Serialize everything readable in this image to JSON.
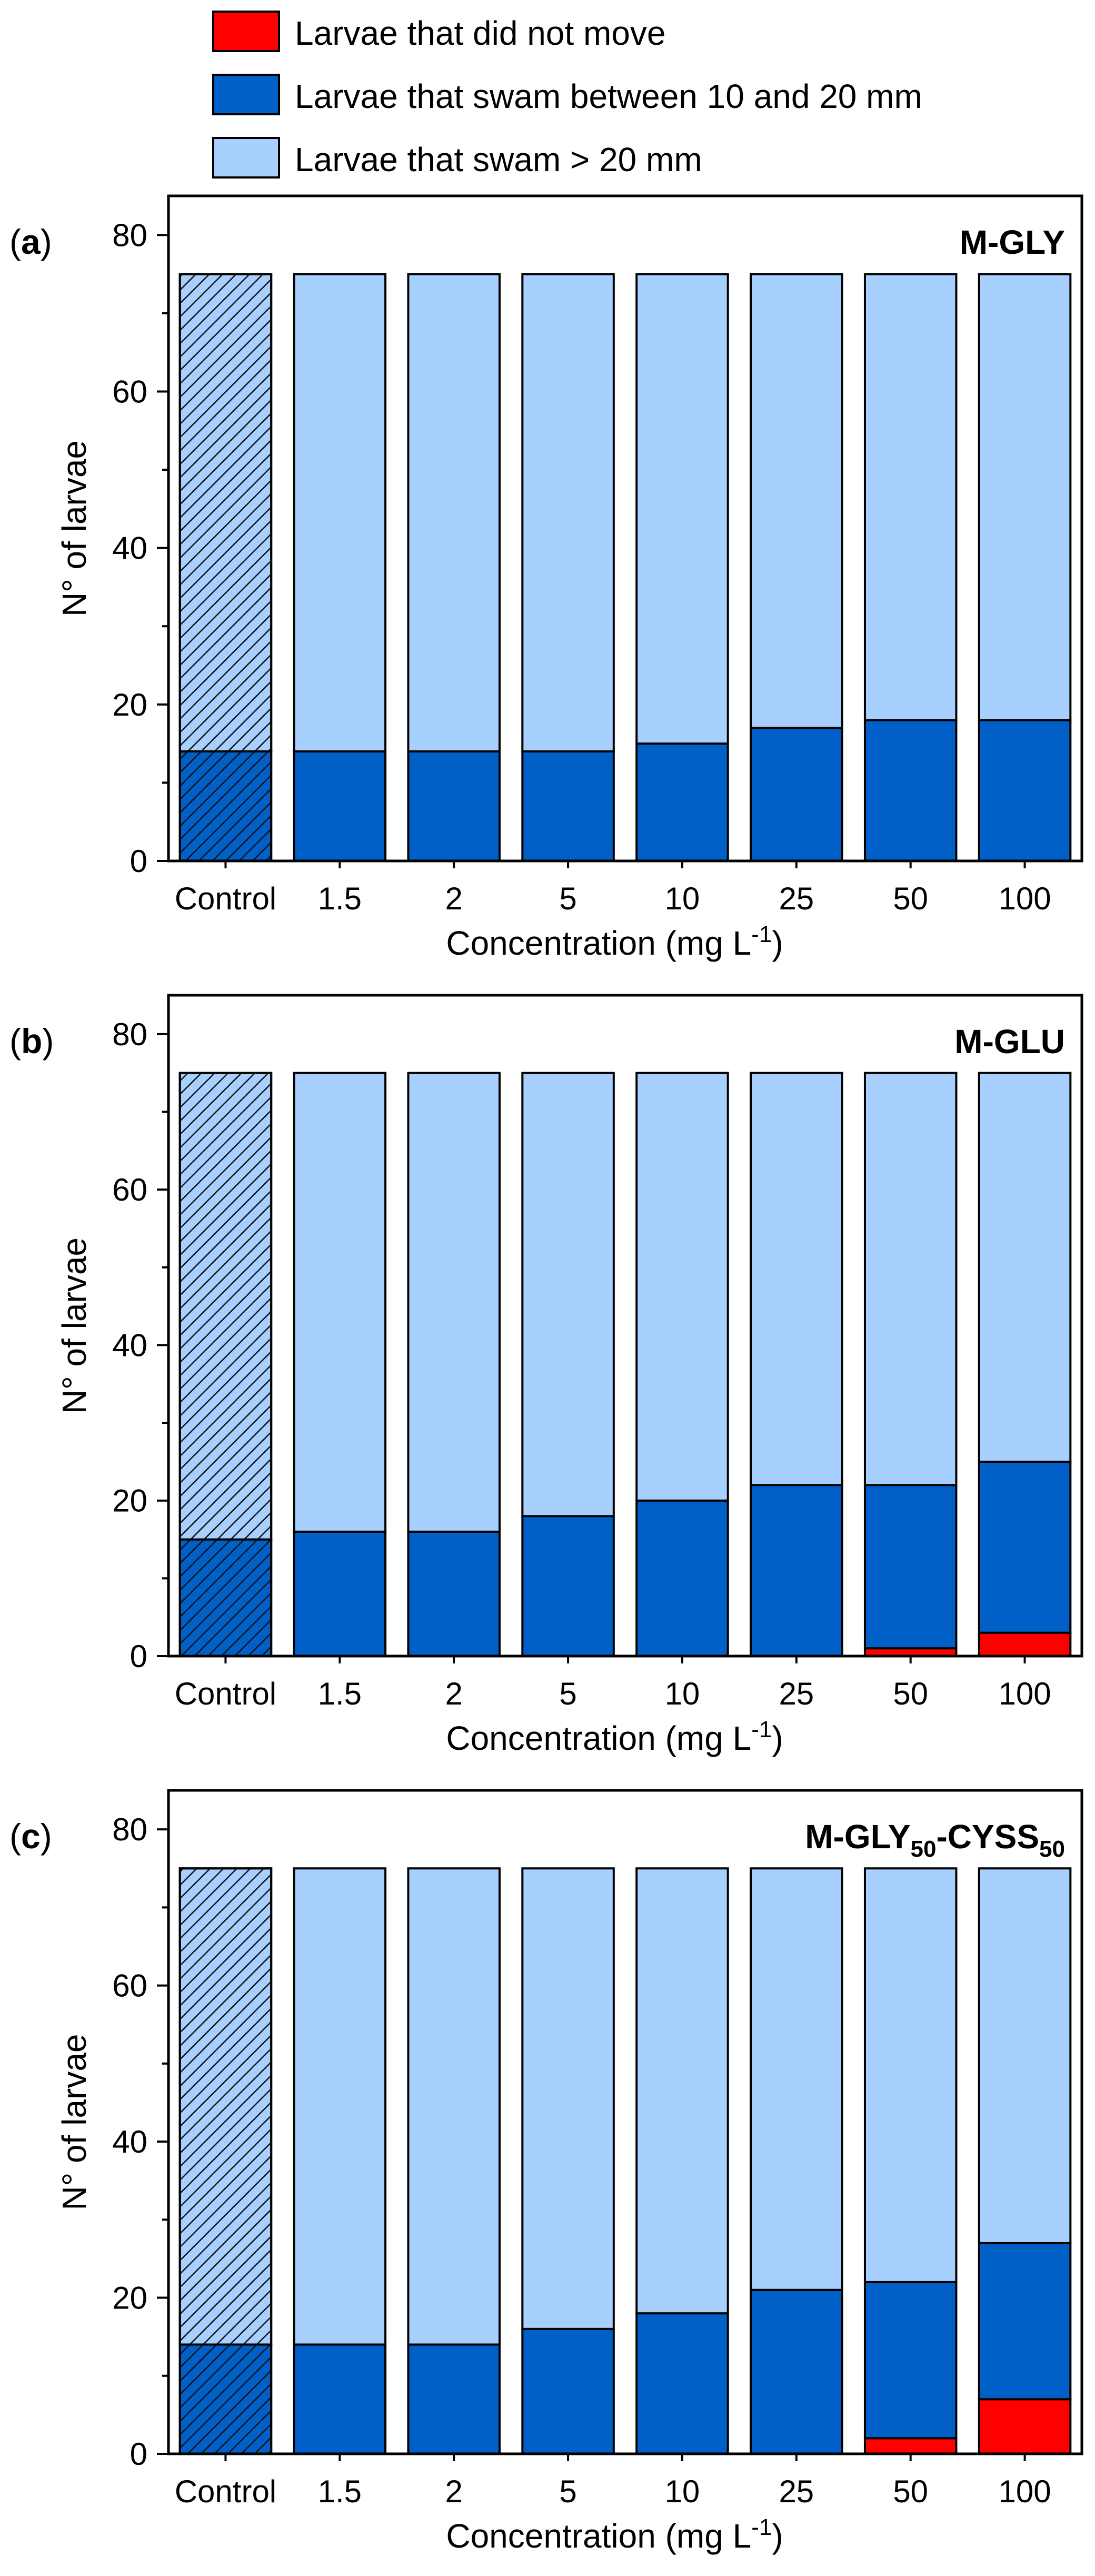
{
  "legend": {
    "items": [
      {
        "label": "Larvae that did not move",
        "color": "#ff0000"
      },
      {
        "label": "Larvae that swam between 10 and 20 mm",
        "color": "#0060c8"
      },
      {
        "label": "Larvae that swam > 20 mm",
        "color": "#a8d0ff"
      }
    ]
  },
  "colors": {
    "did_not_move": "#ff0000",
    "swam_10_20": "#0060c8",
    "swam_gt_20": "#a8d0ff"
  },
  "chart_data": [
    {
      "type": "bar",
      "stacked": true,
      "panel_label": "a",
      "title": "M-GLY",
      "title_sub": "",
      "xlabel": "Concentration (mg L",
      "xlabel_sup": "-1",
      "xlabel_end": ")",
      "ylabel": "N° of larvae",
      "ylim": [
        0,
        85
      ],
      "yticks": [
        0,
        20,
        40,
        60,
        80
      ],
      "categories": [
        "Control",
        "1.5",
        "2",
        "5",
        "10",
        "25",
        "50",
        "100"
      ],
      "hatched_category": "Control",
      "series": [
        {
          "name": "Larvae that did not move",
          "values": [
            0,
            0,
            0,
            0,
            0,
            0,
            0,
            0
          ]
        },
        {
          "name": "Larvae that swam between 10 and 20 mm",
          "values": [
            14,
            14,
            14,
            14,
            15,
            17,
            18,
            18
          ]
        },
        {
          "name": "Larvae that swam > 20 mm",
          "values": [
            61,
            61,
            61,
            61,
            60,
            58,
            57,
            57
          ]
        }
      ]
    },
    {
      "type": "bar",
      "stacked": true,
      "panel_label": "b",
      "title": "M-GLU",
      "title_sub": "",
      "xlabel": "Concentration (mg L",
      "xlabel_sup": "-1",
      "xlabel_end": ")",
      "ylabel": "N° of larvae",
      "ylim": [
        0,
        85
      ],
      "yticks": [
        0,
        20,
        40,
        60,
        80
      ],
      "categories": [
        "Control",
        "1.5",
        "2",
        "5",
        "10",
        "25",
        "50",
        "100"
      ],
      "hatched_category": "Control",
      "series": [
        {
          "name": "Larvae that did not move",
          "values": [
            0,
            0,
            0,
            0,
            0,
            0,
            1,
            3
          ]
        },
        {
          "name": "Larvae that swam between 10 and 20 mm",
          "values": [
            15,
            16,
            16,
            18,
            20,
            22,
            21,
            22
          ]
        },
        {
          "name": "Larvae that swam > 20 mm",
          "values": [
            60,
            59,
            59,
            57,
            55,
            53,
            53,
            50
          ]
        }
      ]
    },
    {
      "type": "bar",
      "stacked": true,
      "panel_label": "c",
      "title": "M-GLY",
      "title_sub": "50",
      "title_mid": "-CYSS",
      "title_sub2": "50",
      "xlabel": "Concentration (mg L",
      "xlabel_sup": "-1",
      "xlabel_end": ")",
      "ylabel": "N° of larvae",
      "ylim": [
        0,
        85
      ],
      "yticks": [
        0,
        20,
        40,
        60,
        80
      ],
      "categories": [
        "Control",
        "1.5",
        "2",
        "5",
        "10",
        "25",
        "50",
        "100"
      ],
      "hatched_category": "Control",
      "series": [
        {
          "name": "Larvae that did not move",
          "values": [
            0,
            0,
            0,
            0,
            0,
            0,
            2,
            7
          ]
        },
        {
          "name": "Larvae that swam between 10 and 20 mm",
          "values": [
            14,
            14,
            14,
            16,
            18,
            21,
            20,
            20
          ]
        },
        {
          "name": "Larvae that swam > 20 mm",
          "values": [
            61,
            61,
            61,
            59,
            57,
            54,
            53,
            48
          ]
        }
      ]
    }
  ]
}
